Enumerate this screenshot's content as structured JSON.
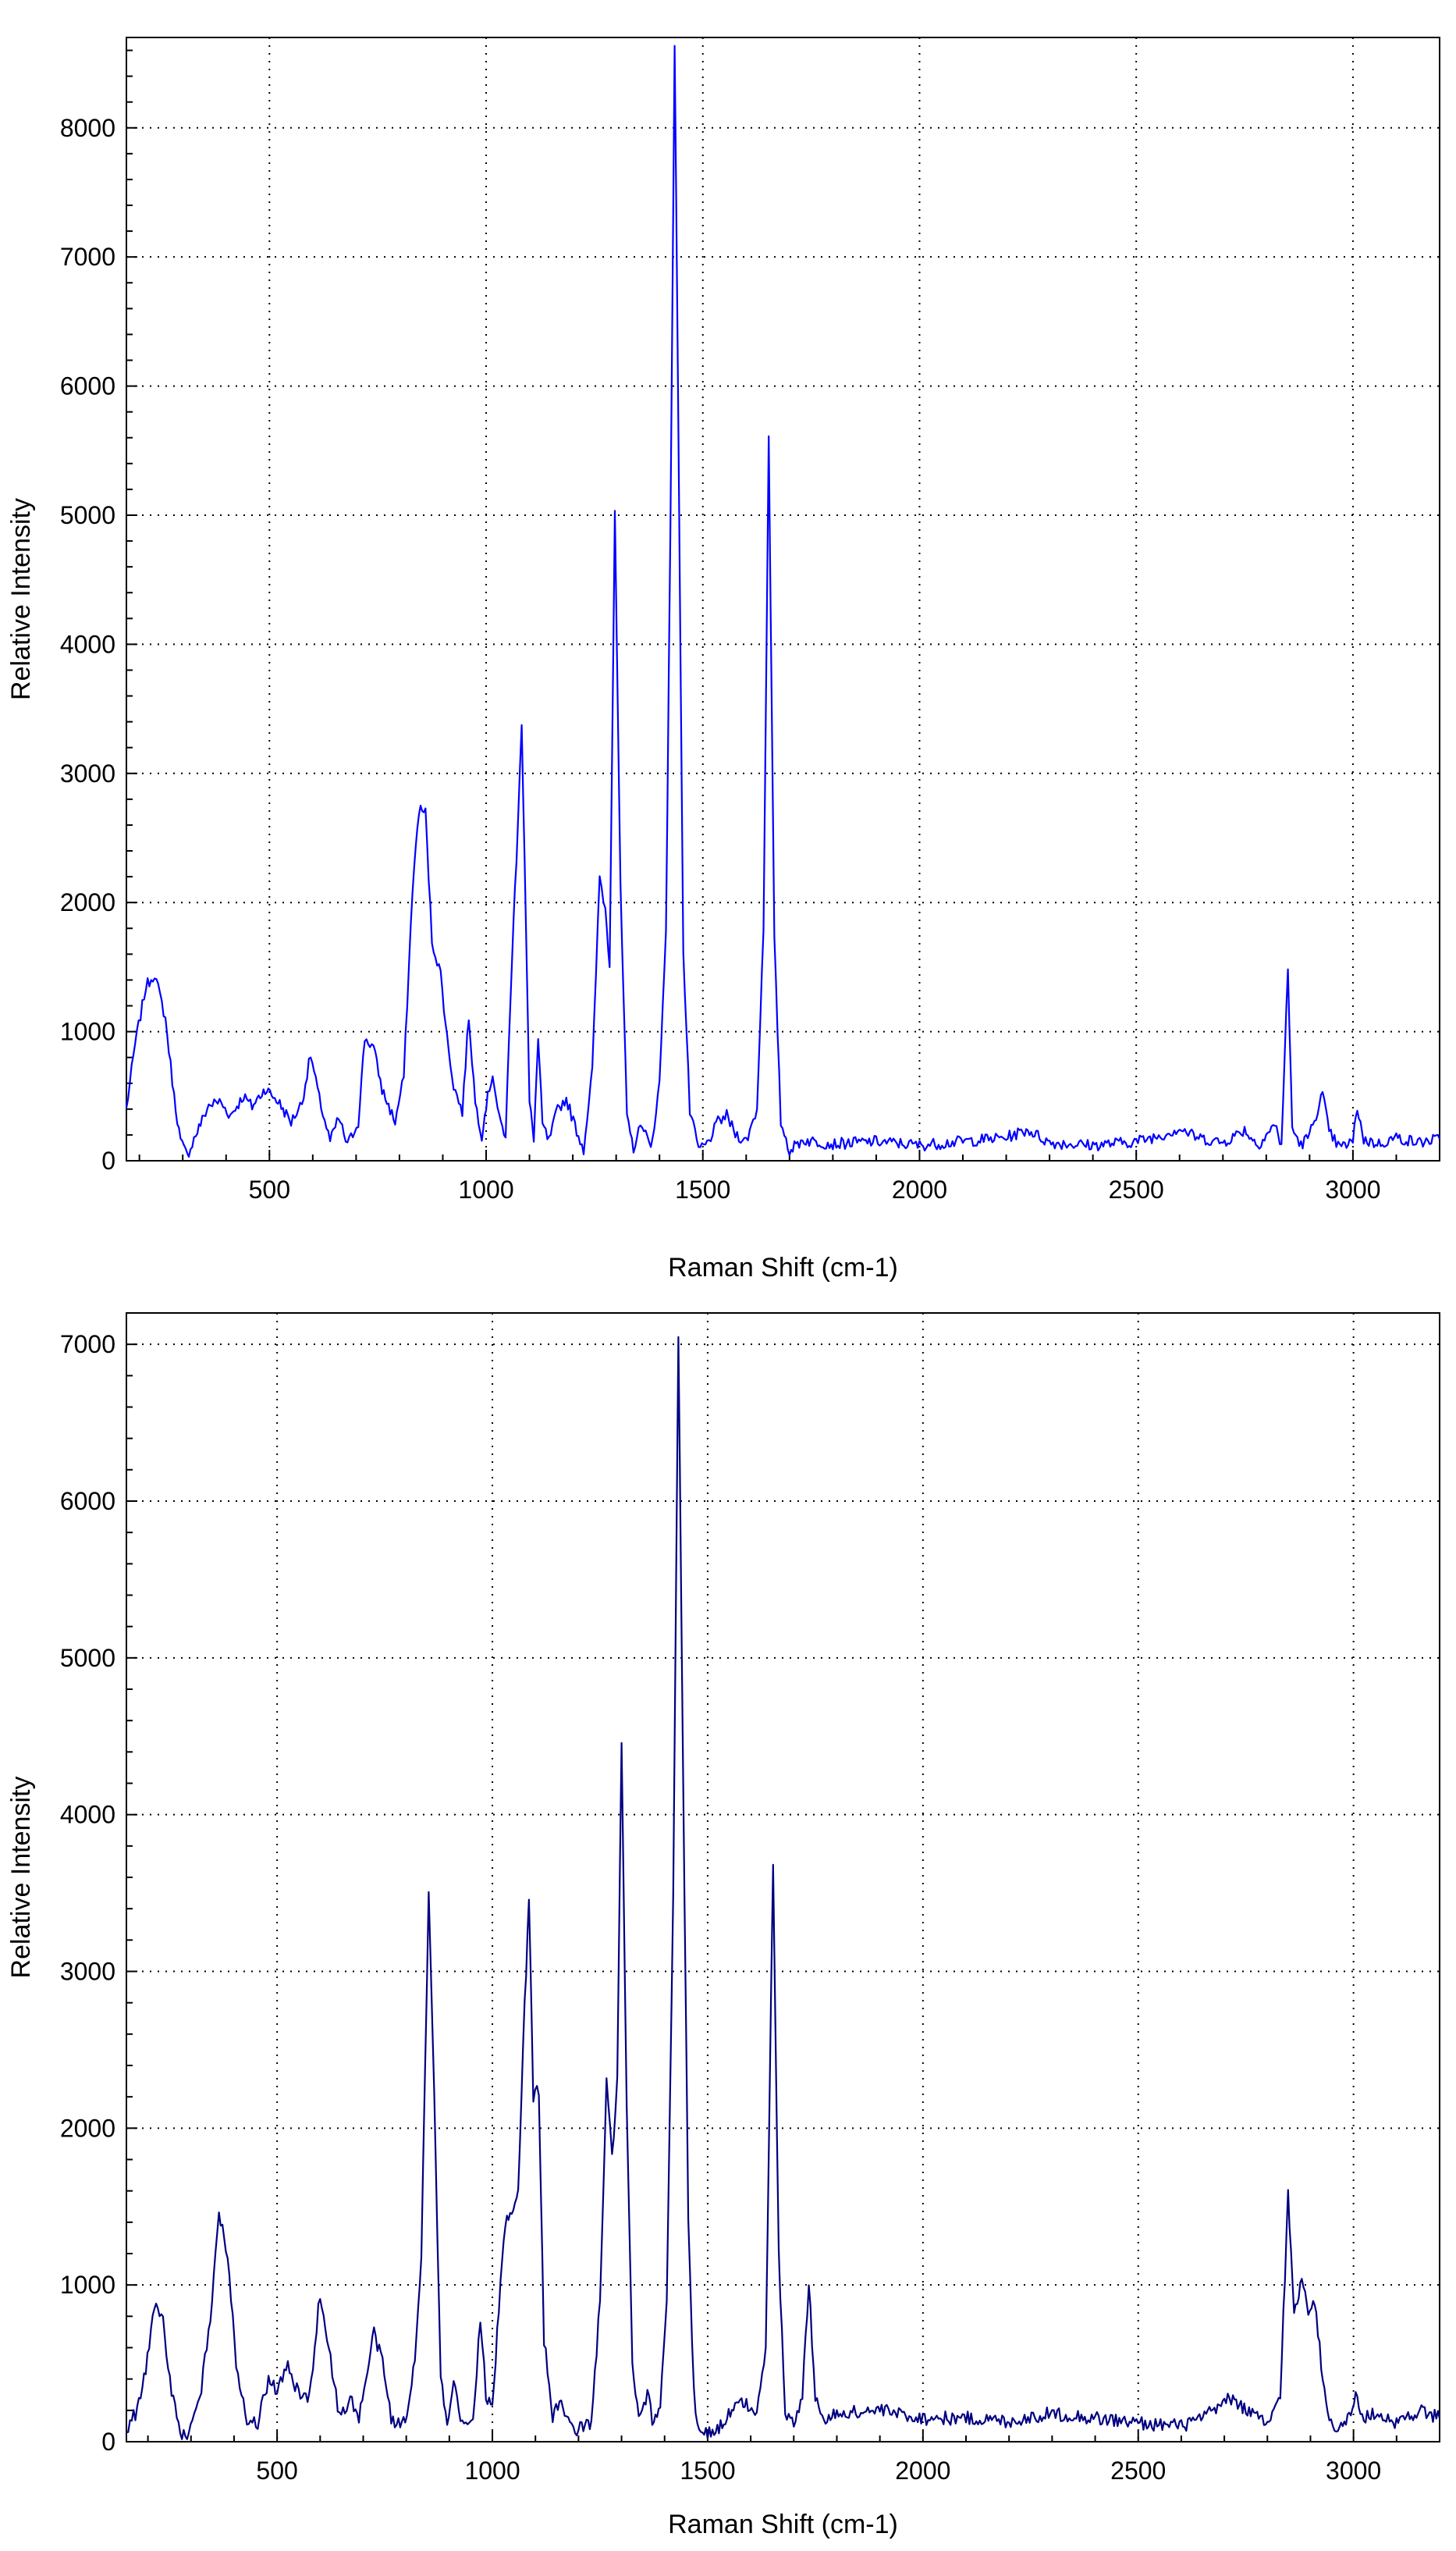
{
  "chart_data": [
    {
      "type": "line",
      "title": "",
      "xlabel": "Raman Shift (cm-1)",
      "ylabel": "Relative Intensity",
      "xlim": [
        170,
        3200
      ],
      "ylim": [
        0,
        8700
      ],
      "xticks": [
        500,
        1000,
        1500,
        2000,
        2500,
        3000
      ],
      "yticks": [
        0,
        1000,
        2000,
        3000,
        4000,
        5000,
        6000,
        7000,
        8000
      ],
      "grid": true,
      "legend": "none",
      "line_color": "#0000ff",
      "series": [
        {
          "points": [
            [
              170,
              400
            ],
            [
              190,
              900
            ],
            [
              215,
              1350
            ],
            [
              235,
              1450
            ],
            [
              260,
              1100
            ],
            [
              280,
              500
            ],
            [
              295,
              150
            ],
            [
              310,
              40
            ],
            [
              330,
              200
            ],
            [
              360,
              430
            ],
            [
              385,
              460
            ],
            [
              410,
              350
            ],
            [
              440,
              500
            ],
            [
              460,
              420
            ],
            [
              490,
              560
            ],
            [
              520,
              460
            ],
            [
              550,
              300
            ],
            [
              575,
              450
            ],
            [
              595,
              820
            ],
            [
              615,
              480
            ],
            [
              640,
              150
            ],
            [
              660,
              330
            ],
            [
              680,
              120
            ],
            [
              705,
              300
            ],
            [
              720,
              950
            ],
            [
              740,
              880
            ],
            [
              760,
              550
            ],
            [
              790,
              300
            ],
            [
              810,
              650
            ],
            [
              830,
              2100
            ],
            [
              845,
              2720
            ],
            [
              860,
              2700
            ],
            [
              875,
              1700
            ],
            [
              895,
              1450
            ],
            [
              910,
              950
            ],
            [
              925,
              580
            ],
            [
              945,
              380
            ],
            [
              960,
              1120
            ],
            [
              975,
              450
            ],
            [
              990,
              200
            ],
            [
              1000,
              430
            ],
            [
              1015,
              680
            ],
            [
              1030,
              320
            ],
            [
              1045,
              200
            ],
            [
              1060,
              1600
            ],
            [
              1070,
              2350
            ],
            [
              1082,
              3400
            ],
            [
              1092,
              1800
            ],
            [
              1100,
              450
            ],
            [
              1110,
              180
            ],
            [
              1120,
              940
            ],
            [
              1130,
              280
            ],
            [
              1145,
              150
            ],
            [
              1165,
              400
            ],
            [
              1185,
              480
            ],
            [
              1205,
              270
            ],
            [
              1225,
              90
            ],
            [
              1245,
              700
            ],
            [
              1262,
              2200
            ],
            [
              1275,
              1950
            ],
            [
              1285,
              1520
            ],
            [
              1297,
              5050
            ],
            [
              1310,
              2100
            ],
            [
              1325,
              320
            ],
            [
              1340,
              100
            ],
            [
              1360,
              300
            ],
            [
              1380,
              80
            ],
            [
              1400,
              600
            ],
            [
              1415,
              1800
            ],
            [
              1425,
              4800
            ],
            [
              1435,
              8650
            ],
            [
              1445,
              5200
            ],
            [
              1455,
              1600
            ],
            [
              1470,
              380
            ],
            [
              1490,
              90
            ],
            [
              1510,
              130
            ],
            [
              1535,
              300
            ],
            [
              1555,
              350
            ],
            [
              1575,
              210
            ],
            [
              1600,
              150
            ],
            [
              1625,
              400
            ],
            [
              1640,
              1800
            ],
            [
              1652,
              5580
            ],
            [
              1665,
              1700
            ],
            [
              1680,
              300
            ],
            [
              1700,
              80
            ],
            [
              1730,
              160
            ],
            [
              1800,
              130
            ],
            [
              1900,
              150
            ],
            [
              2000,
              120
            ],
            [
              2100,
              150
            ],
            [
              2200,
              180
            ],
            [
              2250,
              240
            ],
            [
              2300,
              140
            ],
            [
              2400,
              120
            ],
            [
              2500,
              150
            ],
            [
              2560,
              200
            ],
            [
              2600,
              250
            ],
            [
              2640,
              180
            ],
            [
              2700,
              140
            ],
            [
              2750,
              240
            ],
            [
              2780,
              120
            ],
            [
              2800,
              200
            ],
            [
              2820,
              280
            ],
            [
              2835,
              120
            ],
            [
              2850,
              1480
            ],
            [
              2860,
              250
            ],
            [
              2880,
              120
            ],
            [
              2900,
              200
            ],
            [
              2930,
              520
            ],
            [
              2945,
              220
            ],
            [
              2970,
              100
            ],
            [
              3000,
              150
            ],
            [
              3010,
              420
            ],
            [
              3025,
              160
            ],
            [
              3060,
              130
            ],
            [
              3100,
              180
            ],
            [
              3150,
              140
            ],
            [
              3200,
              170
            ]
          ]
        }
      ]
    },
    {
      "type": "line",
      "title": "",
      "xlabel": "Raman Shift (cm-1)",
      "ylabel": "Relative Intensity",
      "xlim": [
        150,
        3200
      ],
      "ylim": [
        0,
        7200
      ],
      "xticks": [
        500,
        1000,
        1500,
        2000,
        2500,
        3000
      ],
      "yticks": [
        0,
        1000,
        2000,
        3000,
        4000,
        5000,
        6000,
        7000
      ],
      "grid": true,
      "legend": "none",
      "line_color": "#000080",
      "series": [
        {
          "points": [
            [
              150,
              80
            ],
            [
              175,
              200
            ],
            [
              195,
              450
            ],
            [
              215,
              880
            ],
            [
              235,
              780
            ],
            [
              255,
              300
            ],
            [
              275,
              60
            ],
            [
              295,
              40
            ],
            [
              320,
              250
            ],
            [
              345,
              800
            ],
            [
              365,
              1450
            ],
            [
              385,
              1200
            ],
            [
              405,
              500
            ],
            [
              430,
              150
            ],
            [
              455,
              120
            ],
            [
              480,
              400
            ],
            [
              500,
              330
            ],
            [
              525,
              480
            ],
            [
              550,
              300
            ],
            [
              575,
              280
            ],
            [
              600,
              950
            ],
            [
              620,
              600
            ],
            [
              645,
              150
            ],
            [
              670,
              280
            ],
            [
              690,
              150
            ],
            [
              710,
              450
            ],
            [
              725,
              700
            ],
            [
              745,
              500
            ],
            [
              765,
              150
            ],
            [
              790,
              100
            ],
            [
              805,
              200
            ],
            [
              820,
              550
            ],
            [
              835,
              1200
            ],
            [
              852,
              3500
            ],
            [
              865,
              2200
            ],
            [
              880,
              400
            ],
            [
              895,
              80
            ],
            [
              910,
              370
            ],
            [
              930,
              100
            ],
            [
              955,
              130
            ],
            [
              972,
              800
            ],
            [
              985,
              300
            ],
            [
              1000,
              200
            ],
            [
              1015,
              850
            ],
            [
              1030,
              1400
            ],
            [
              1045,
              1480
            ],
            [
              1060,
              1600
            ],
            [
              1075,
              2800
            ],
            [
              1085,
              3450
            ],
            [
              1095,
              2200
            ],
            [
              1108,
              2250
            ],
            [
              1120,
              650
            ],
            [
              1140,
              160
            ],
            [
              1160,
              250
            ],
            [
              1180,
              100
            ],
            [
              1200,
              80
            ],
            [
              1230,
              120
            ],
            [
              1250,
              900
            ],
            [
              1265,
              2300
            ],
            [
              1278,
              1800
            ],
            [
              1290,
              2300
            ],
            [
              1300,
              4450
            ],
            [
              1312,
              2100
            ],
            [
              1325,
              500
            ],
            [
              1340,
              130
            ],
            [
              1360,
              300
            ],
            [
              1375,
              100
            ],
            [
              1390,
              250
            ],
            [
              1405,
              900
            ],
            [
              1420,
              3500
            ],
            [
              1432,
              7050
            ],
            [
              1442,
              4500
            ],
            [
              1455,
              1400
            ],
            [
              1468,
              300
            ],
            [
              1480,
              80
            ],
            [
              1500,
              50
            ],
            [
              1530,
              100
            ],
            [
              1560,
              220
            ],
            [
              1590,
              250
            ],
            [
              1610,
              150
            ],
            [
              1635,
              600
            ],
            [
              1652,
              3700
            ],
            [
              1665,
              1200
            ],
            [
              1680,
              200
            ],
            [
              1700,
              100
            ],
            [
              1720,
              300
            ],
            [
              1735,
              1000
            ],
            [
              1750,
              300
            ],
            [
              1770,
              120
            ],
            [
              1800,
              180
            ],
            [
              1900,
              200
            ],
            [
              2000,
              150
            ],
            [
              2100,
              150
            ],
            [
              2200,
              130
            ],
            [
              2300,
              180
            ],
            [
              2400,
              150
            ],
            [
              2500,
              120
            ],
            [
              2600,
              100
            ],
            [
              2650,
              150
            ],
            [
              2700,
              250
            ],
            [
              2720,
              280
            ],
            [
              2750,
              200
            ],
            [
              2780,
              150
            ],
            [
              2800,
              100
            ],
            [
              2830,
              300
            ],
            [
              2848,
              1580
            ],
            [
              2862,
              800
            ],
            [
              2880,
              1050
            ],
            [
              2895,
              850
            ],
            [
              2910,
              900
            ],
            [
              2925,
              500
            ],
            [
              2940,
              150
            ],
            [
              2960,
              100
            ],
            [
              2990,
              150
            ],
            [
              3005,
              300
            ],
            [
              3020,
              150
            ],
            [
              3060,
              180
            ],
            [
              3100,
              120
            ],
            [
              3150,
              200
            ],
            [
              3200,
              150
            ]
          ]
        }
      ]
    }
  ]
}
